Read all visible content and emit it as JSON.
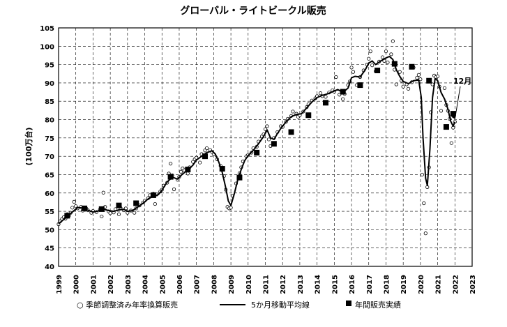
{
  "chart_data": {
    "type": "line",
    "title": "グローバル・ライトビークル販売",
    "ylabel": "(100万台)",
    "xlabel": "",
    "ylim": [
      40,
      105
    ],
    "xlim": [
      1999,
      2023
    ],
    "yticks": [
      40,
      45,
      50,
      55,
      60,
      65,
      70,
      75,
      80,
      85,
      90,
      95,
      100,
      105
    ],
    "xticks": [
      "1999",
      "2000",
      "2001",
      "2002",
      "2003",
      "2004",
      "2005",
      "2006",
      "2007",
      "2008",
      "2009",
      "2010",
      "2011",
      "2012",
      "2013",
      "2014",
      "2015",
      "2016",
      "2017",
      "2018",
      "2019",
      "2020",
      "2021",
      "2022",
      "2023"
    ],
    "grid": true,
    "legend_position": "bottom",
    "annotation": {
      "text": "12月",
      "x": 2021.92,
      "y": 79
    },
    "series": [
      {
        "name": "○ 季節調整済み年率換算販売",
        "style": "scatter-open-circle",
        "points": [
          [
            1999.0,
            51.5
          ],
          [
            1999.1,
            52.3
          ],
          [
            1999.2,
            52.9
          ],
          [
            1999.3,
            53.4
          ],
          [
            1999.4,
            53.0
          ],
          [
            1999.5,
            54.2
          ],
          [
            1999.6,
            53.8
          ],
          [
            1999.7,
            54.6
          ],
          [
            1999.8,
            56.0
          ],
          [
            1999.9,
            57.6
          ],
          [
            2000.0,
            56.4
          ],
          [
            2000.1,
            55.8
          ],
          [
            2000.3,
            56.2
          ],
          [
            2000.4,
            55.2
          ],
          [
            2000.6,
            55.8
          ],
          [
            2000.7,
            55.3
          ],
          [
            2000.9,
            54.6
          ],
          [
            2001.0,
            55.1
          ],
          [
            2001.2,
            54.8
          ],
          [
            2001.4,
            55.5
          ],
          [
            2001.5,
            53.6
          ],
          [
            2001.6,
            60.1
          ],
          [
            2001.7,
            56.2
          ],
          [
            2001.9,
            55.0
          ],
          [
            2002.0,
            54.5
          ],
          [
            2002.2,
            54.7
          ],
          [
            2002.3,
            55.6
          ],
          [
            2002.5,
            54.2
          ],
          [
            2002.6,
            55.9
          ],
          [
            2002.8,
            55.3
          ],
          [
            2002.9,
            55.8
          ],
          [
            2003.0,
            54.6
          ],
          [
            2003.2,
            55.2
          ],
          [
            2003.4,
            54.6
          ],
          [
            2003.5,
            55.8
          ],
          [
            2003.7,
            56.6
          ],
          [
            2003.9,
            57.4
          ],
          [
            2004.0,
            57.9
          ],
          [
            2004.2,
            58.6
          ],
          [
            2004.3,
            59.4
          ],
          [
            2004.5,
            59.8
          ],
          [
            2004.6,
            57.0
          ],
          [
            2004.7,
            59.6
          ],
          [
            2004.9,
            60.4
          ],
          [
            2005.0,
            60.9
          ],
          [
            2005.1,
            62.0
          ],
          [
            2005.3,
            62.8
          ],
          [
            2005.4,
            65.3
          ],
          [
            2005.5,
            68.0
          ],
          [
            2005.6,
            64.8
          ],
          [
            2005.7,
            61.0
          ],
          [
            2005.9,
            63.6
          ],
          [
            2006.0,
            64.4
          ],
          [
            2006.1,
            65.8
          ],
          [
            2006.2,
            66.7
          ],
          [
            2006.3,
            66.2
          ],
          [
            2006.5,
            65.3
          ],
          [
            2006.6,
            67.0
          ],
          [
            2006.8,
            68.5
          ],
          [
            2006.9,
            69.2
          ],
          [
            2007.0,
            69.6
          ],
          [
            2007.2,
            68.3
          ],
          [
            2007.3,
            70.6
          ],
          [
            2007.5,
            71.6
          ],
          [
            2007.6,
            72.2
          ],
          [
            2007.8,
            71.7
          ],
          [
            2007.9,
            71.2
          ],
          [
            2008.0,
            70.6
          ],
          [
            2008.2,
            69.2
          ],
          [
            2008.4,
            67.4
          ],
          [
            2008.6,
            64.6
          ],
          [
            2008.7,
            60.9
          ],
          [
            2008.8,
            56.2
          ],
          [
            2008.9,
            55.8
          ],
          [
            2009.0,
            56.0
          ],
          [
            2009.1,
            59.2
          ],
          [
            2009.3,
            62.6
          ],
          [
            2009.5,
            65.4
          ],
          [
            2009.6,
            67.0
          ],
          [
            2009.7,
            68.6
          ],
          [
            2009.9,
            70.0
          ],
          [
            2010.0,
            70.4
          ],
          [
            2010.2,
            71.0
          ],
          [
            2010.3,
            72.2
          ],
          [
            2010.5,
            72.6
          ],
          [
            2010.6,
            74.0
          ],
          [
            2010.8,
            75.4
          ],
          [
            2010.9,
            76.0
          ],
          [
            2011.0,
            77.4
          ],
          [
            2011.1,
            78.2
          ],
          [
            2011.2,
            74.6
          ],
          [
            2011.3,
            72.8
          ],
          [
            2011.5,
            75.0
          ],
          [
            2011.7,
            76.6
          ],
          [
            2011.9,
            78.2
          ],
          [
            2012.0,
            78.0
          ],
          [
            2012.2,
            79.4
          ],
          [
            2012.3,
            80.2
          ],
          [
            2012.5,
            81.0
          ],
          [
            2012.6,
            82.2
          ],
          [
            2012.8,
            81.6
          ],
          [
            2012.9,
            80.8
          ],
          [
            2013.0,
            81.2
          ],
          [
            2013.2,
            82.2
          ],
          [
            2013.4,
            83.4
          ],
          [
            2013.5,
            84.2
          ],
          [
            2013.7,
            85.2
          ],
          [
            2013.9,
            85.8
          ],
          [
            2014.0,
            86.4
          ],
          [
            2014.2,
            87.2
          ],
          [
            2014.3,
            86.4
          ],
          [
            2014.5,
            86.2
          ],
          [
            2014.7,
            87.4
          ],
          [
            2014.9,
            88.0
          ],
          [
            2015.0,
            87.6
          ],
          [
            2015.1,
            91.6
          ],
          [
            2015.3,
            86.8
          ],
          [
            2015.5,
            85.6
          ],
          [
            2015.6,
            87.0
          ],
          [
            2015.8,
            89.4
          ],
          [
            2015.9,
            90.4
          ],
          [
            2016.0,
            94.2
          ],
          [
            2016.1,
            93.0
          ],
          [
            2016.3,
            89.4
          ],
          [
            2016.5,
            91.6
          ],
          [
            2016.7,
            93.4
          ],
          [
            2016.9,
            95.0
          ],
          [
            2017.0,
            96.6
          ],
          [
            2017.1,
            98.6
          ],
          [
            2017.2,
            94.8
          ],
          [
            2017.4,
            93.2
          ],
          [
            2017.6,
            95.8
          ],
          [
            2017.8,
            97.0
          ],
          [
            2017.9,
            96.0
          ],
          [
            2018.0,
            98.6
          ],
          [
            2018.1,
            95.6
          ],
          [
            2018.3,
            97.8
          ],
          [
            2018.4,
            101.4
          ],
          [
            2018.5,
            93.6
          ],
          [
            2018.6,
            89.6
          ],
          [
            2018.8,
            93.0
          ],
          [
            2018.9,
            90.6
          ],
          [
            2019.0,
            89.0
          ],
          [
            2019.2,
            89.6
          ],
          [
            2019.3,
            88.4
          ],
          [
            2019.5,
            90.2
          ],
          [
            2019.6,
            94.2
          ],
          [
            2019.8,
            91.4
          ],
          [
            2019.9,
            92.2
          ],
          [
            2020.0,
            91.0
          ],
          [
            2020.1,
            65.0
          ],
          [
            2020.2,
            57.2
          ],
          [
            2020.3,
            49.0
          ],
          [
            2020.4,
            61.6
          ],
          [
            2020.5,
            67.0
          ],
          [
            2020.6,
            82.0
          ],
          [
            2020.7,
            89.6
          ],
          [
            2020.8,
            92.0
          ],
          [
            2020.9,
            91.6
          ],
          [
            2021.0,
            91.8
          ],
          [
            2021.1,
            89.0
          ],
          [
            2021.2,
            82.4
          ],
          [
            2021.4,
            88.6
          ],
          [
            2021.5,
            84.0
          ],
          [
            2021.6,
            82.4
          ],
          [
            2021.7,
            80.2
          ],
          [
            2021.8,
            73.6
          ],
          [
            2021.9,
            77.8
          ],
          [
            2022.0,
            79.4
          ]
        ]
      },
      {
        "name": "5か月移動平均線",
        "style": "line",
        "points": [
          [
            1999.0,
            51.6
          ],
          [
            1999.3,
            52.8
          ],
          [
            1999.6,
            54.0
          ],
          [
            1999.9,
            55.2
          ],
          [
            2000.1,
            56.0
          ],
          [
            2000.4,
            55.9
          ],
          [
            2000.7,
            55.3
          ],
          [
            2001.0,
            54.8
          ],
          [
            2001.3,
            55.1
          ],
          [
            2001.6,
            55.6
          ],
          [
            2001.9,
            55.2
          ],
          [
            2002.2,
            55.0
          ],
          [
            2002.5,
            55.4
          ],
          [
            2002.8,
            55.5
          ],
          [
            2003.0,
            55.0
          ],
          [
            2003.3,
            55.2
          ],
          [
            2003.6,
            56.2
          ],
          [
            2003.9,
            57.2
          ],
          [
            2004.2,
            58.4
          ],
          [
            2004.5,
            59.1
          ],
          [
            2004.8,
            59.6
          ],
          [
            2005.0,
            60.8
          ],
          [
            2005.3,
            63.0
          ],
          [
            2005.6,
            64.3
          ],
          [
            2005.9,
            63.8
          ],
          [
            2006.2,
            65.2
          ],
          [
            2006.5,
            66.2
          ],
          [
            2006.8,
            67.6
          ],
          [
            2007.0,
            69.0
          ],
          [
            2007.3,
            70.0
          ],
          [
            2007.6,
            71.0
          ],
          [
            2007.9,
            71.5
          ],
          [
            2008.1,
            70.6
          ],
          [
            2008.3,
            68.4
          ],
          [
            2008.5,
            65.6
          ],
          [
            2008.7,
            61.4
          ],
          [
            2008.85,
            57.8
          ],
          [
            2009.0,
            56.6
          ],
          [
            2009.2,
            59.8
          ],
          [
            2009.4,
            63.6
          ],
          [
            2009.6,
            66.4
          ],
          [
            2009.8,
            68.8
          ],
          [
            2010.0,
            70.2
          ],
          [
            2010.3,
            71.6
          ],
          [
            2010.6,
            73.4
          ],
          [
            2010.9,
            75.4
          ],
          [
            2011.1,
            77.2
          ],
          [
            2011.3,
            75.0
          ],
          [
            2011.5,
            74.6
          ],
          [
            2011.7,
            76.2
          ],
          [
            2011.9,
            77.6
          ],
          [
            2012.2,
            79.4
          ],
          [
            2012.5,
            80.8
          ],
          [
            2012.8,
            81.4
          ],
          [
            2013.1,
            81.6
          ],
          [
            2013.4,
            83.2
          ],
          [
            2013.7,
            84.8
          ],
          [
            2014.0,
            86.0
          ],
          [
            2014.3,
            86.6
          ],
          [
            2014.6,
            87.0
          ],
          [
            2014.9,
            87.6
          ],
          [
            2015.2,
            88.2
          ],
          [
            2015.5,
            87.4
          ],
          [
            2015.8,
            88.6
          ],
          [
            2016.0,
            91.4
          ],
          [
            2016.2,
            91.8
          ],
          [
            2016.5,
            91.6
          ],
          [
            2016.8,
            93.6
          ],
          [
            2017.0,
            95.4
          ],
          [
            2017.2,
            96.0
          ],
          [
            2017.4,
            95.0
          ],
          [
            2017.7,
            96.0
          ],
          [
            2018.0,
            96.8
          ],
          [
            2018.2,
            97.2
          ],
          [
            2018.4,
            96.4
          ],
          [
            2018.6,
            93.6
          ],
          [
            2018.8,
            91.8
          ],
          [
            2019.0,
            90.4
          ],
          [
            2019.3,
            89.8
          ],
          [
            2019.6,
            90.6
          ],
          [
            2019.9,
            90.8
          ],
          [
            2020.05,
            86.0
          ],
          [
            2020.15,
            75.0
          ],
          [
            2020.3,
            64.0
          ],
          [
            2020.4,
            62.0
          ],
          [
            2020.55,
            72.0
          ],
          [
            2020.7,
            86.0
          ],
          [
            2020.85,
            91.2
          ],
          [
            2021.0,
            90.6
          ],
          [
            2021.2,
            87.4
          ],
          [
            2021.4,
            85.6
          ],
          [
            2021.6,
            82.8
          ],
          [
            2021.75,
            79.6
          ],
          [
            2021.9,
            78.2
          ],
          [
            2022.0,
            79.4
          ]
        ]
      },
      {
        "name": "年間販売実績",
        "style": "square-marker",
        "points": [
          [
            1999.5,
            53.8
          ],
          [
            2000.5,
            55.8
          ],
          [
            2001.5,
            55.6
          ],
          [
            2002.5,
            56.6
          ],
          [
            2003.5,
            57.2
          ],
          [
            2004.5,
            59.4
          ],
          [
            2005.5,
            64.4
          ],
          [
            2006.5,
            66.4
          ],
          [
            2007.5,
            70.0
          ],
          [
            2008.5,
            66.6
          ],
          [
            2009.5,
            64.2
          ],
          [
            2010.5,
            71.0
          ],
          [
            2011.5,
            73.4
          ],
          [
            2012.5,
            76.6
          ],
          [
            2013.5,
            81.2
          ],
          [
            2014.5,
            84.6
          ],
          [
            2015.5,
            87.6
          ],
          [
            2016.5,
            89.4
          ],
          [
            2017.5,
            93.4
          ],
          [
            2018.5,
            95.2
          ],
          [
            2019.5,
            94.4
          ],
          [
            2020.5,
            90.6
          ],
          [
            2021.5,
            78.0
          ],
          [
            2021.9,
            81.6
          ]
        ]
      }
    ]
  }
}
